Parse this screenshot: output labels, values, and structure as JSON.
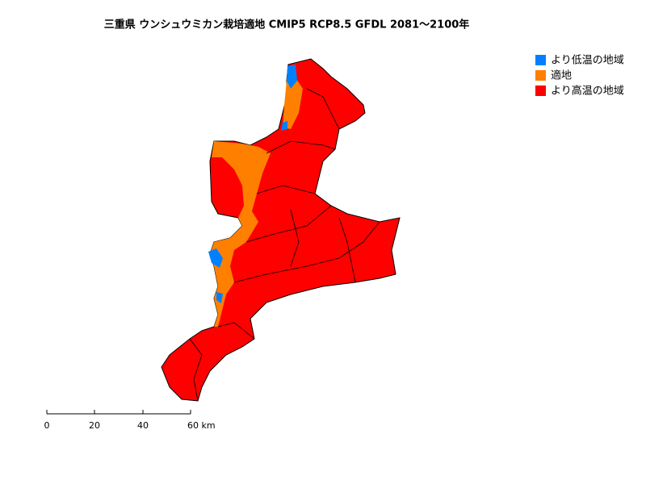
{
  "title": "三重県 ウンシュウミカン栽培適地 CMIP5 RCP8.5 GFDL 2081～2100年",
  "legend": [
    {
      "name": "より低温の地域",
      "color": "#0080ff"
    },
    {
      "name": "適地",
      "color": "#ff8000"
    },
    {
      "name": "より高温の地域",
      "color": "#ff0000"
    }
  ],
  "scale_bar": {
    "labels": [
      "0",
      "20",
      "40",
      "60 km"
    ]
  }
}
